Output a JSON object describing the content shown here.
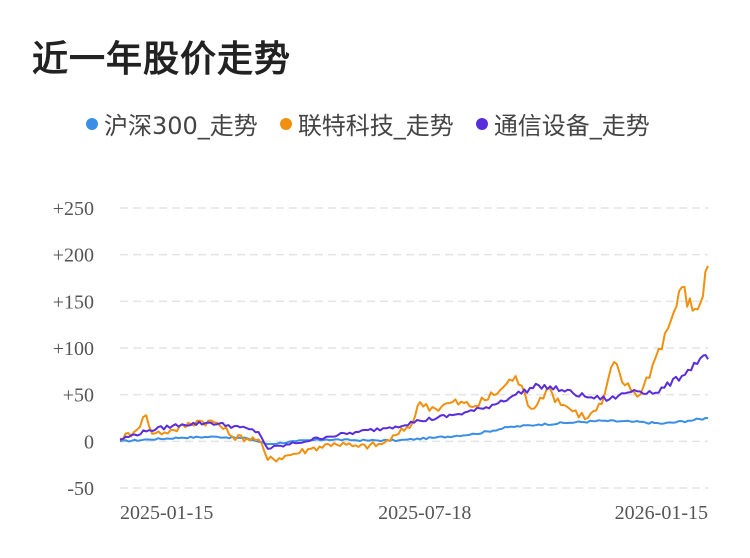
{
  "title": "近一年股价走势",
  "chart_data": {
    "type": "line",
    "title": "近一年股价走势",
    "xlabel": "",
    "ylabel": "",
    "x_ticks": [
      "2025-01-15",
      "2025-07-18",
      "2026-01-15"
    ],
    "x_range": [
      "2025-01-01",
      "2026-01-18"
    ],
    "y_ticks": [
      "+250",
      "+200",
      "+150",
      "+100",
      "+50",
      "0",
      "-50"
    ],
    "ylim": [
      -50,
      250
    ],
    "grid": true,
    "legend_position": "top-left",
    "series": [
      {
        "name": "沪深300_走势",
        "color": "#3a8ee6",
        "points": [
          [
            "2025-01-01",
            0
          ],
          [
            "2025-01-20",
            2
          ],
          [
            "2025-02-10",
            4
          ],
          [
            "2025-03-05",
            5
          ],
          [
            "2025-03-25",
            3
          ],
          [
            "2025-04-07",
            -3
          ],
          [
            "2025-04-25",
            0
          ],
          [
            "2025-05-15",
            2
          ],
          [
            "2025-06-10",
            1
          ],
          [
            "2025-07-01",
            1
          ],
          [
            "2025-07-25",
            4
          ],
          [
            "2025-08-20",
            8
          ],
          [
            "2025-09-10",
            15
          ],
          [
            "2025-09-30",
            18
          ],
          [
            "2025-10-20",
            20
          ],
          [
            "2025-11-10",
            22
          ],
          [
            "2025-12-01",
            21
          ],
          [
            "2025-12-20",
            19
          ],
          [
            "2026-01-05",
            22
          ],
          [
            "2026-01-18",
            25
          ]
        ]
      },
      {
        "name": "联特科技_走势",
        "color": "#f0900f",
        "points": [
          [
            "2025-01-01",
            3
          ],
          [
            "2025-01-10",
            10
          ],
          [
            "2025-01-18",
            28
          ],
          [
            "2025-01-22",
            8
          ],
          [
            "2025-02-05",
            12
          ],
          [
            "2025-02-20",
            22
          ],
          [
            "2025-03-05",
            20
          ],
          [
            "2025-03-15",
            5
          ],
          [
            "2025-04-01",
            2
          ],
          [
            "2025-04-07",
            -20
          ],
          [
            "2025-04-20",
            -15
          ],
          [
            "2025-05-05",
            -8
          ],
          [
            "2025-05-20",
            -2
          ],
          [
            "2025-06-05",
            -6
          ],
          [
            "2025-06-20",
            -3
          ],
          [
            "2025-07-01",
            8
          ],
          [
            "2025-07-10",
            20
          ],
          [
            "2025-07-15",
            42
          ],
          [
            "2025-07-25",
            35
          ],
          [
            "2025-08-05",
            42
          ],
          [
            "2025-08-20",
            38
          ],
          [
            "2025-09-05",
            55
          ],
          [
            "2025-09-15",
            70
          ],
          [
            "2025-09-25",
            35
          ],
          [
            "2025-10-05",
            55
          ],
          [
            "2025-10-20",
            35
          ],
          [
            "2025-11-01",
            25
          ],
          [
            "2025-11-10",
            40
          ],
          [
            "2025-11-18",
            85
          ],
          [
            "2025-11-25",
            60
          ],
          [
            "2025-12-05",
            50
          ],
          [
            "2025-12-15",
            90
          ],
          [
            "2025-12-25",
            130
          ],
          [
            "2026-01-01",
            165
          ],
          [
            "2026-01-08",
            140
          ],
          [
            "2026-01-13",
            148
          ],
          [
            "2026-01-18",
            188
          ]
        ]
      },
      {
        "name": "通信设备_走势",
        "color": "#5a2ddc",
        "points": [
          [
            "2025-01-01",
            2
          ],
          [
            "2025-01-20",
            12
          ],
          [
            "2025-02-10",
            18
          ],
          [
            "2025-03-01",
            20
          ],
          [
            "2025-03-20",
            15
          ],
          [
            "2025-04-01",
            10
          ],
          [
            "2025-04-07",
            -8
          ],
          [
            "2025-04-25",
            -2
          ],
          [
            "2025-05-15",
            5
          ],
          [
            "2025-06-05",
            10
          ],
          [
            "2025-06-25",
            15
          ],
          [
            "2025-07-15",
            22
          ],
          [
            "2025-08-05",
            28
          ],
          [
            "2025-08-25",
            35
          ],
          [
            "2025-09-15",
            50
          ],
          [
            "2025-09-30",
            60
          ],
          [
            "2025-10-15",
            55
          ],
          [
            "2025-10-30",
            48
          ],
          [
            "2025-11-15",
            45
          ],
          [
            "2025-12-01",
            55
          ],
          [
            "2025-12-15",
            52
          ],
          [
            "2026-01-01",
            70
          ],
          [
            "2026-01-15",
            92
          ],
          [
            "2026-01-18",
            88
          ]
        ]
      }
    ]
  }
}
